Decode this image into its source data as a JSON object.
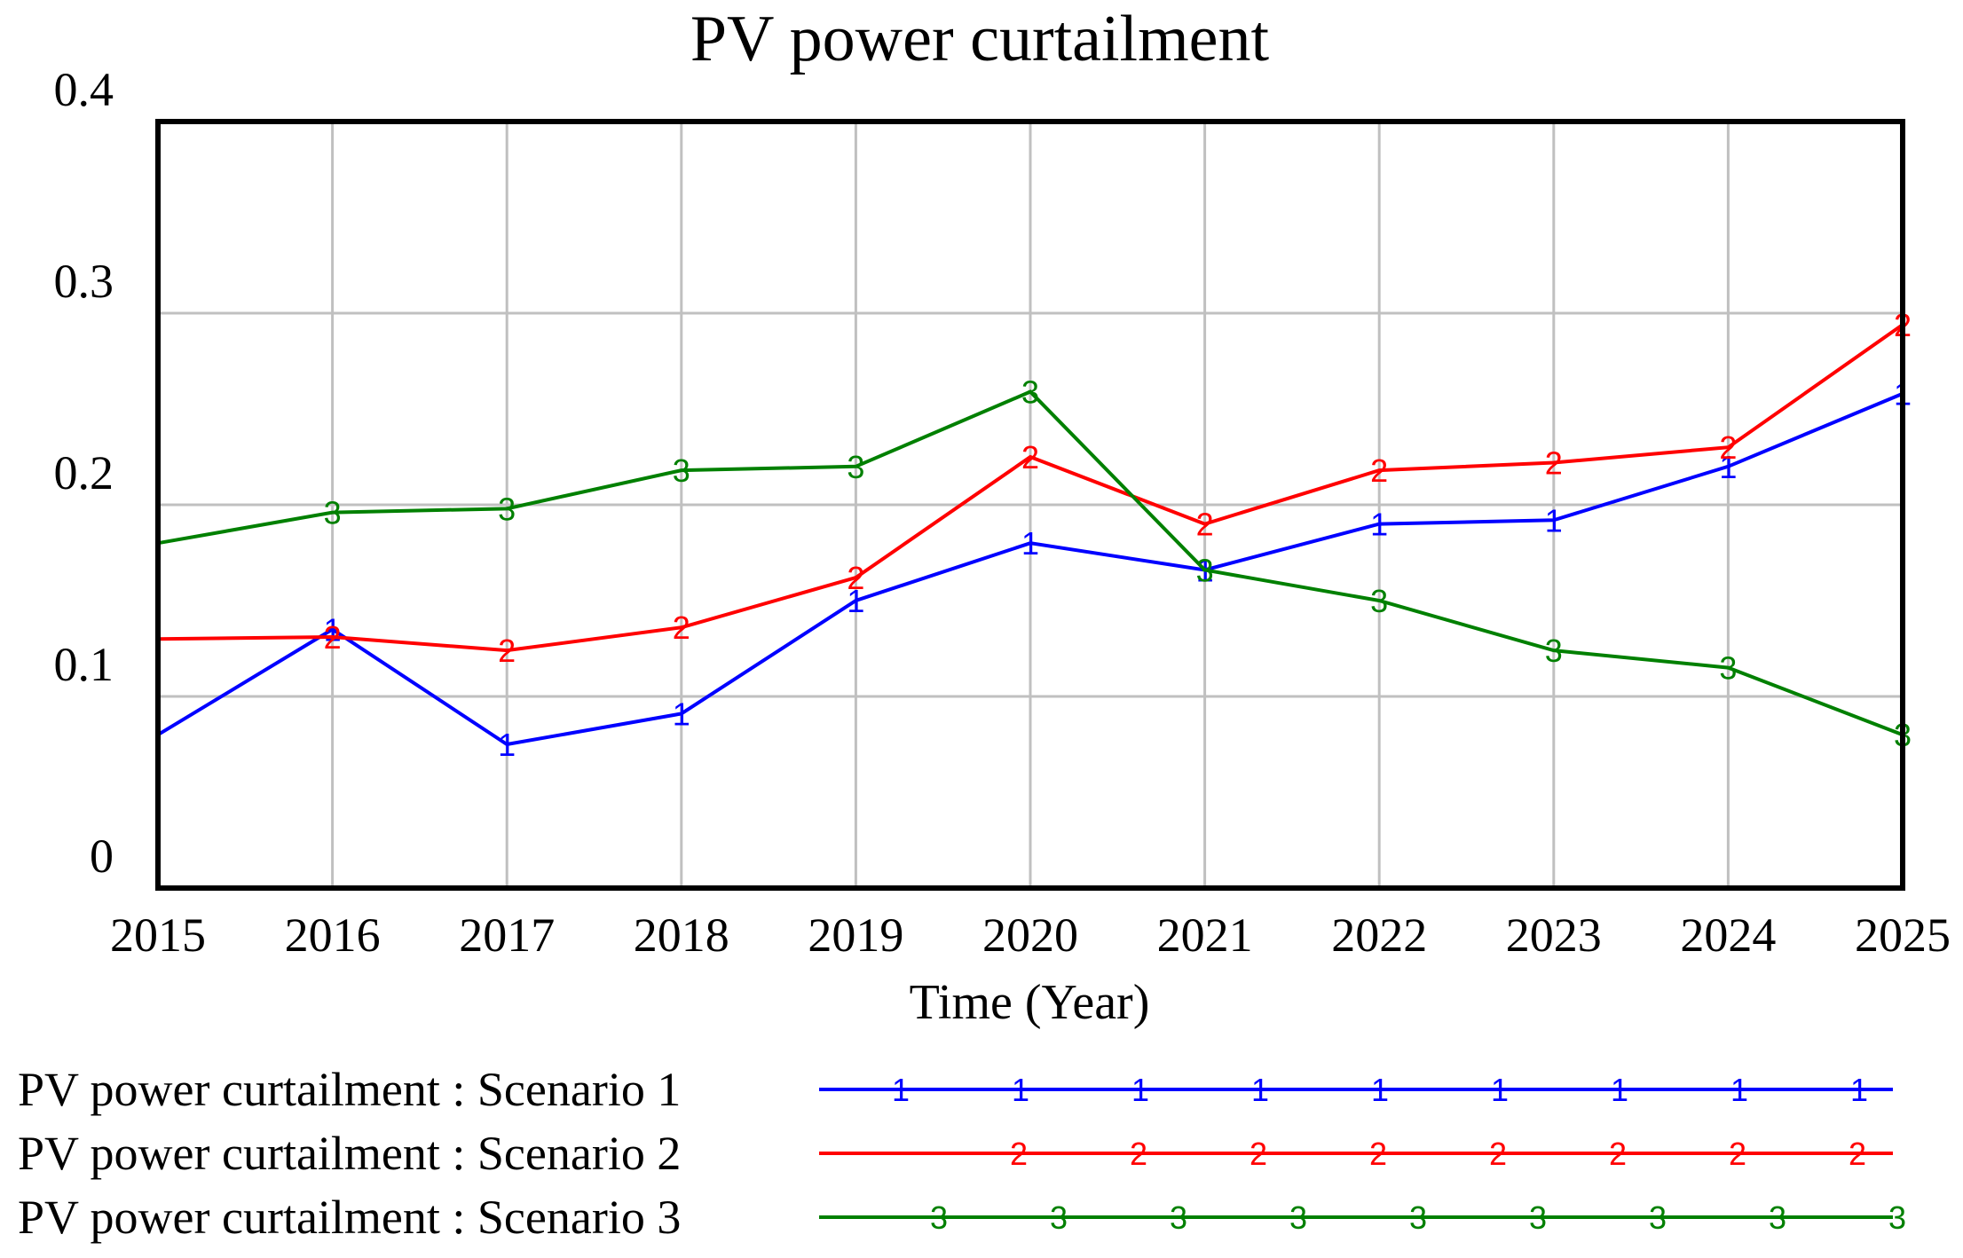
{
  "chart_data": {
    "type": "line",
    "title": "PV power curtailment",
    "xlabel": "Time (Year)",
    "ylabel": "",
    "x": [
      2015,
      2016,
      2017,
      2018,
      2019,
      2020,
      2021,
      2022,
      2023,
      2024,
      2025
    ],
    "xlim": [
      2015,
      2025
    ],
    "ylim": [
      0,
      0.4
    ],
    "x_tick_labels": [
      "2015",
      "2016",
      "2017",
      "2018",
      "2019",
      "2020",
      "2021",
      "2022",
      "2023",
      "2024",
      "2025"
    ],
    "y_ticks": [
      0,
      0.1,
      0.2,
      0.3,
      0.4
    ],
    "y_tick_labels": [
      "0",
      "0.1",
      "0.2",
      "0.3",
      "0.4"
    ],
    "grid": true,
    "legend_position": "bottom",
    "series": [
      {
        "name": "PV power curtailment : Scenario 1",
        "marker": "1",
        "color": "#0000ff",
        "values": [
          0.08,
          0.135,
          0.075,
          0.091,
          0.15,
          0.18,
          0.166,
          0.19,
          0.192,
          0.22,
          0.258
        ]
      },
      {
        "name": "PV power curtailment : Scenario 2",
        "marker": "2",
        "color": "#ff0000",
        "values": [
          0.13,
          0.131,
          0.124,
          0.136,
          0.162,
          0.225,
          0.19,
          0.218,
          0.222,
          0.23,
          0.294
        ]
      },
      {
        "name": "PV power curtailment : Scenario 3",
        "marker": "3",
        "color": "#008000",
        "values": [
          0.18,
          0.196,
          0.198,
          0.218,
          0.22,
          0.259,
          0.166,
          0.15,
          0.124,
          0.115,
          0.08
        ]
      }
    ]
  }
}
